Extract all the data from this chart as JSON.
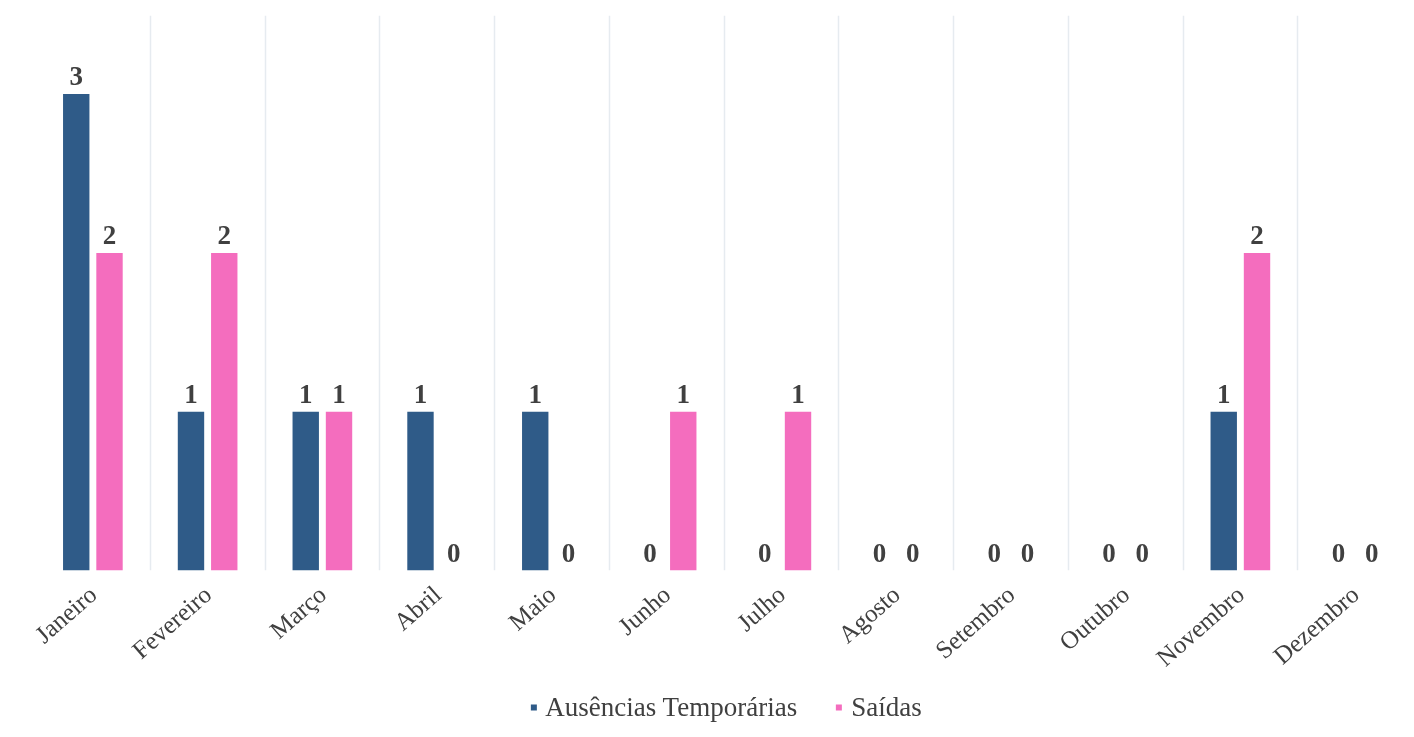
{
  "chart_data": {
    "type": "bar",
    "categories": [
      "Janeiro",
      "Fevereiro",
      "Março",
      "Abril",
      "Maio",
      "Junho",
      "Julho",
      "Agosto",
      "Setembro",
      "Outubro",
      "Novembro",
      "Dezembro"
    ],
    "series": [
      {
        "name": "Ausências Temporárias",
        "color": "#2f5b88",
        "values": [
          3,
          1,
          1,
          1,
          1,
          0,
          0,
          0,
          0,
          0,
          1,
          0
        ]
      },
      {
        "name": "Saídas",
        "color": "#f46dbe",
        "values": [
          2,
          2,
          1,
          0,
          0,
          1,
          1,
          0,
          0,
          0,
          2,
          0
        ]
      }
    ],
    "data_labels": true,
    "grid": "x",
    "legend": "bottom"
  }
}
